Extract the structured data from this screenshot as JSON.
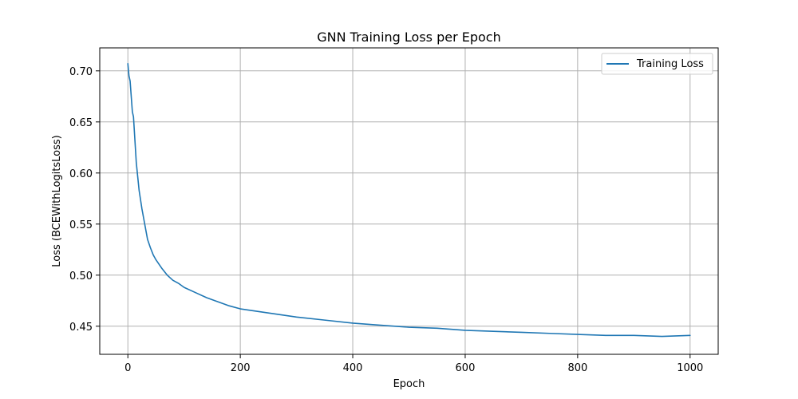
{
  "chart_data": {
    "type": "line",
    "title": "GNN Training Loss per Epoch",
    "xlabel": "Epoch",
    "ylabel": "Loss (BCEWithLogitsLoss)",
    "xlim": [
      -50,
      1050
    ],
    "ylim": [
      0.4225,
      0.7225
    ],
    "xticks": [
      0,
      200,
      400,
      600,
      800,
      1000
    ],
    "yticks": [
      0.45,
      0.5,
      0.55,
      0.6,
      0.65,
      0.7
    ],
    "ytick_labels": [
      "0.45",
      "0.50",
      "0.55",
      "0.60",
      "0.65",
      "0.70"
    ],
    "grid": true,
    "legend": {
      "placement": "top-right",
      "entries": [
        "Training Loss"
      ]
    },
    "series": [
      {
        "name": "Training Loss",
        "color": "#1f77b4",
        "x": [
          0,
          2,
          4,
          6,
          8,
          10,
          15,
          20,
          25,
          30,
          35,
          40,
          45,
          50,
          60,
          70,
          80,
          90,
          100,
          120,
          140,
          160,
          180,
          200,
          250,
          300,
          350,
          400,
          450,
          500,
          550,
          600,
          650,
          700,
          750,
          800,
          850,
          900,
          950,
          1000
        ],
        "y": [
          0.707,
          0.695,
          0.69,
          0.675,
          0.66,
          0.655,
          0.61,
          0.583,
          0.565,
          0.55,
          0.535,
          0.527,
          0.52,
          0.515,
          0.507,
          0.5,
          0.495,
          0.492,
          0.488,
          0.483,
          0.478,
          0.474,
          0.47,
          0.467,
          0.463,
          0.459,
          0.456,
          0.453,
          0.451,
          0.449,
          0.448,
          0.446,
          0.445,
          0.444,
          0.443,
          0.442,
          0.441,
          0.441,
          0.44,
          0.441
        ]
      }
    ]
  }
}
